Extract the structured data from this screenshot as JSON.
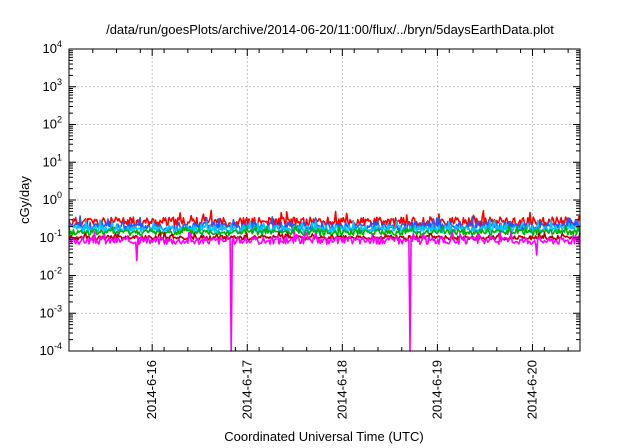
{
  "chart_data": {
    "type": "line",
    "title": "/data/run/goesPlots/archive/2014-06-20/11:00/flux/../bryn/5daysEarthData.plot",
    "xlabel": "Coordinated Universal Time (UTC)",
    "ylabel": "cGy/day",
    "yscale": "log",
    "ylim": [
      0.0001,
      10000
    ],
    "xlim": [
      "2014-06-15 03:00",
      "2014-06-20 12:00"
    ],
    "grid": true,
    "legend": "none",
    "y_ticks": [
      {
        "value": 0.0001,
        "base": "10",
        "exp": "-4"
      },
      {
        "value": 0.001,
        "base": "10",
        "exp": "-3"
      },
      {
        "value": 0.01,
        "base": "10",
        "exp": "-2"
      },
      {
        "value": 0.1,
        "base": "10",
        "exp": "-1"
      },
      {
        "value": 1,
        "base": "10",
        "exp": "0"
      },
      {
        "value": 10,
        "base": "10",
        "exp": "1"
      },
      {
        "value": 100,
        "base": "10",
        "exp": "2"
      },
      {
        "value": 1000,
        "base": "10",
        "exp": "3"
      },
      {
        "value": 10000,
        "base": "10",
        "exp": "4"
      }
    ],
    "x_ticks": [
      {
        "value": "2014-06-16 00:00",
        "label": "2014-6-16"
      },
      {
        "value": "2014-06-17 00:00",
        "label": "2014-6-17"
      },
      {
        "value": "2014-06-18 00:00",
        "label": "2014-6-18"
      },
      {
        "value": "2014-06-19 00:00",
        "label": "2014-6-19"
      },
      {
        "value": "2014-06-20 00:00",
        "label": "2014-6-20"
      }
    ],
    "series": [
      {
        "color": "#ff0000",
        "level": 0.26,
        "spread": 0.13,
        "seed": 11,
        "dips": []
      },
      {
        "color": "#1e5aff",
        "level": 0.2,
        "spread": 0.12,
        "seed": 23,
        "dips": []
      },
      {
        "color": "#00c8ff",
        "level": 0.17,
        "spread": 0.1,
        "seed": 37,
        "dips": []
      },
      {
        "color": "#00b000",
        "level": 0.14,
        "spread": 0.08,
        "seed": 41,
        "dips": []
      },
      {
        "color": "#b00000",
        "level": 0.1,
        "spread": 0.06,
        "seed": 53,
        "dips": []
      },
      {
        "color": "#ff00ff",
        "level": 0.085,
        "spread": 0.1,
        "seed": 67,
        "dips": [
          {
            "t": "2014-06-15 20:00",
            "value": 0.025
          },
          {
            "t": "2014-06-16 20:00",
            "value": 0.0001
          },
          {
            "t": "2014-06-18 17:00",
            "value": 0.0001
          },
          {
            "t": "2014-06-20 01:00",
            "value": 0.035
          }
        ]
      }
    ]
  }
}
